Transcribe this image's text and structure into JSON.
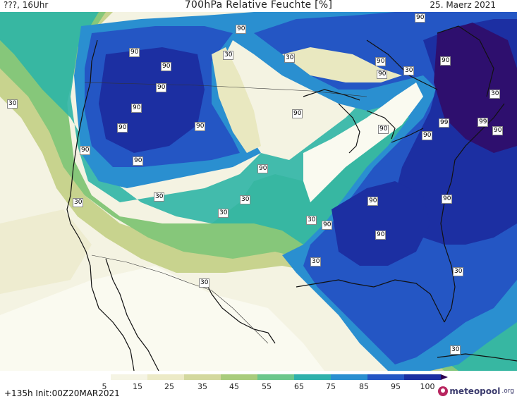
{
  "header": {
    "left": "???, 16Uhr",
    "title": "700hPa Relative Feuchte [%]",
    "date": "25. Maerz 2021"
  },
  "colors": {
    "very_dry": "#ffffff",
    "dry": "#f2f1d9",
    "olive": "#c4cf86",
    "green": "#7ecb74",
    "teal": "#2fb5a6",
    "cyan": "#2a8fd0",
    "blue": "#2050c0",
    "deep_blue": "#1a2b9e",
    "purple": "#2e0f6e",
    "coast": "#111111"
  },
  "map": {
    "labels_90": [
      "90",
      "90",
      "90",
      "90",
      "90",
      "90",
      "90",
      "90",
      "90",
      "90",
      "90",
      "90",
      "90",
      "90",
      "90",
      "90",
      "90",
      "90",
      "90",
      "90",
      "90",
      "90"
    ],
    "labels_30": [
      "30",
      "30",
      "30",
      "30",
      "30",
      "30",
      "30",
      "30",
      "30",
      "30",
      "30",
      "30",
      "30",
      "30"
    ],
    "labels_99": [
      "99",
      "99"
    ]
  },
  "colorbar": {
    "ticks": [
      "5",
      "15",
      "25",
      "35",
      "45",
      "55",
      "65",
      "75",
      "85",
      "95",
      "100"
    ],
    "colors": [
      "#ffffff",
      "#f5f4e4",
      "#eceac7",
      "#d3d89f",
      "#a9cc7d",
      "#6cc78d",
      "#2fb1ac",
      "#2a8fd0",
      "#2456c4",
      "#1c2fa2",
      "#2b0050"
    ]
  },
  "footer": {
    "init": "+135h Init:00Z20MAR2021",
    "logo_name": "meteopool",
    "logo_tld": ".org"
  }
}
